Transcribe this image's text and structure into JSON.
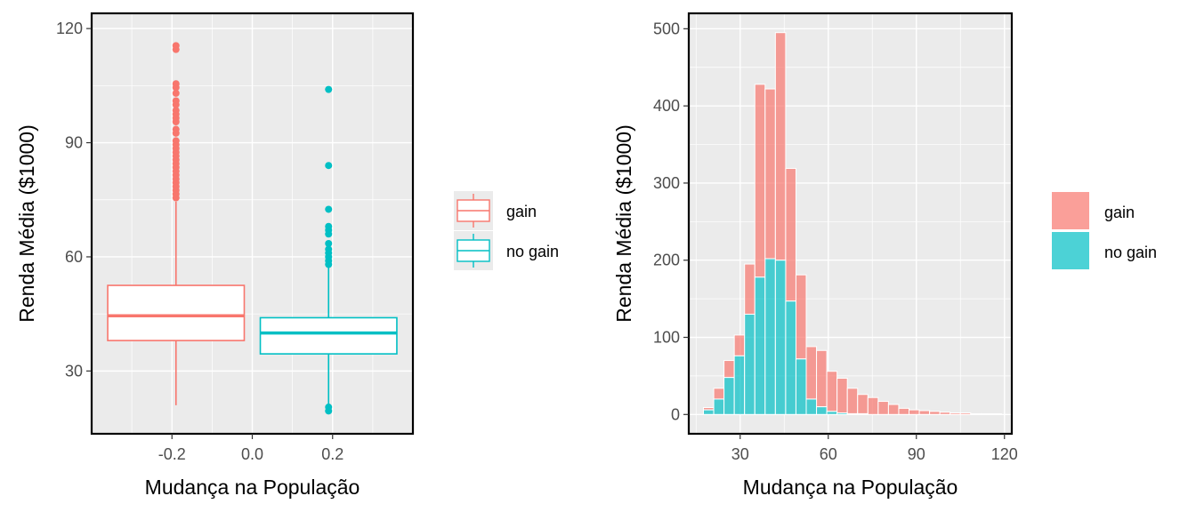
{
  "colors": {
    "gain": "#F8766D",
    "no_gain": "#00BFC4",
    "panel_bg": "#EBEBEB",
    "grid": "#FFFFFF"
  },
  "chart_data": [
    {
      "type": "box",
      "xlabel": "Mudança na População",
      "ylabel": "Renda Média ($1000)",
      "xlim": [
        -0.4,
        0.4
      ],
      "ylim": [
        13.5,
        124
      ],
      "x_ticks": [
        -0.2,
        0.0,
        0.2
      ],
      "x_tick_labels": [
        "-0.2",
        "0.0",
        "0.2"
      ],
      "y_ticks": [
        30,
        60,
        90,
        120
      ],
      "y_tick_labels": [
        "30",
        "60",
        "90",
        "120"
      ],
      "grid": true,
      "legend_position": "right",
      "series": [
        {
          "name": "gain",
          "color": "#F8766D",
          "x_center": -0.19,
          "box_halfwidth": 0.17,
          "whisker_low": 21,
          "q1": 38,
          "median": 44.5,
          "q3": 52.5,
          "whisker_high": 74.5,
          "outliers": [
            75.5,
            76.5,
            77.5,
            78.5,
            79.5,
            80.5,
            81.5,
            82.5,
            83.5,
            84.5,
            85.5,
            86.5,
            87.5,
            88.5,
            89.5,
            90.5,
            92.5,
            93.5,
            95.5,
            96.5,
            97.5,
            98.5,
            100,
            101,
            103,
            104.5,
            105.5,
            114.5,
            115.5
          ]
        },
        {
          "name": "no gain",
          "color": "#00BFC4",
          "x_center": 0.19,
          "box_halfwidth": 0.17,
          "whisker_low": 21,
          "q1": 34.5,
          "median": 40,
          "q3": 44,
          "whisker_high": 57.5,
          "outliers": [
            19.5,
            20.5,
            58,
            59,
            60,
            61,
            62,
            63.5,
            66,
            67,
            68,
            72.5,
            84,
            104
          ]
        }
      ]
    },
    {
      "type": "histogram",
      "xlabel": "Mudança na População",
      "ylabel": "Renda Média ($1000)",
      "xlim": [
        12.5,
        122.5
      ],
      "ylim": [
        -25,
        520
      ],
      "x_ticks": [
        30,
        60,
        90,
        120
      ],
      "x_tick_labels": [
        "30",
        "60",
        "90",
        "120"
      ],
      "y_ticks": [
        0,
        100,
        200,
        300,
        400,
        500
      ],
      "y_tick_labels": [
        "0",
        "100",
        "200",
        "300",
        "400",
        "500"
      ],
      "bin_width": 3.5,
      "grid": true,
      "legend_position": "right",
      "bin_starts": [
        17.5,
        21,
        24.5,
        28,
        31.5,
        35,
        38.5,
        42,
        45.5,
        49,
        52.5,
        56,
        59.5,
        63,
        66.5,
        70,
        73.5,
        77,
        80.5,
        84,
        87.5,
        91,
        94.5,
        98,
        101.5,
        105,
        108.5,
        112,
        115.5
      ],
      "series": [
        {
          "name": "gain",
          "color": "#F8766D",
          "values": [
            3,
            14,
            22,
            27,
            65,
            250,
            220,
            295,
            172,
            109,
            68,
            73,
            52,
            45,
            33,
            25,
            22,
            17,
            13,
            8,
            6,
            5,
            4,
            3,
            2,
            2,
            1,
            1,
            1
          ]
        },
        {
          "name": "no gain",
          "color": "#00BFC4",
          "values": [
            6,
            20,
            48,
            76,
            130,
            178,
            202,
            200,
            147,
            72,
            20,
            10,
            4,
            2,
            1,
            1,
            0,
            0,
            0,
            0,
            0,
            0,
            0,
            0,
            0,
            0,
            0,
            0,
            0
          ]
        }
      ]
    }
  ]
}
